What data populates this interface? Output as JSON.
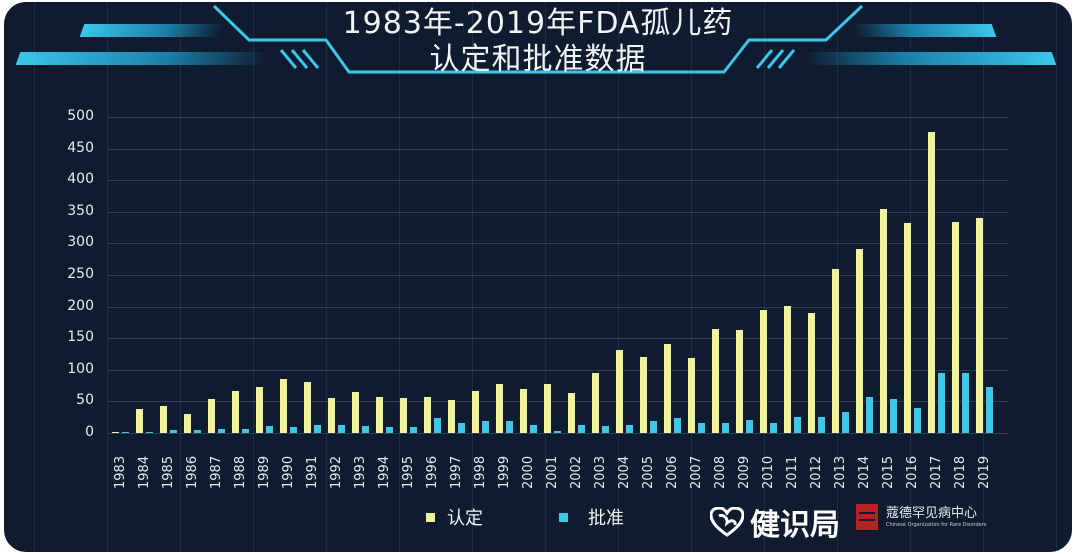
{
  "title": {
    "line1": "1983年-2019年FDA孤儿药",
    "line2": "认定和批准数据"
  },
  "colors": {
    "background": "#0f1b2e",
    "designation": "#f0f29a",
    "approval": "#3dc8e6",
    "accent": "#3cc6ea"
  },
  "legend": {
    "designation": "认定",
    "approval": "批准"
  },
  "logos": {
    "brand1": "健识局",
    "brand2": "蔻德罕见病中心",
    "brand2_sub": "Chinese Organization for Rare Disorders"
  },
  "chart_data": {
    "type": "bar",
    "title": "1983年-2019年FDA孤儿药认定和批准数据",
    "xlabel": "",
    "ylabel": "",
    "ylim": [
      0,
      500
    ],
    "yticks": [
      0,
      50,
      100,
      150,
      200,
      250,
      300,
      350,
      400,
      450,
      500
    ],
    "grid": true,
    "legend_position": "bottom",
    "categories": [
      "1983",
      "1984",
      "1985",
      "1986",
      "1987",
      "1988",
      "1989",
      "1990",
      "1991",
      "1992",
      "1993",
      "1994",
      "1995",
      "1996",
      "1997",
      "1998",
      "1999",
      "2000",
      "2001",
      "2002",
      "2003",
      "2004",
      "2005",
      "2006",
      "2007",
      "2008",
      "2009",
      "2010",
      "2011",
      "2012",
      "2013",
      "2014",
      "2015",
      "2016",
      "2017",
      "2018",
      "2019"
    ],
    "series": [
      {
        "name": "认定",
        "color": "#f0f29a",
        "values": [
          2,
          38,
          43,
          30,
          54,
          66,
          73,
          85,
          81,
          55,
          65,
          57,
          56,
          57,
          52,
          66,
          78,
          69,
          77,
          64,
          95,
          131,
          121,
          141,
          118,
          165,
          163,
          195,
          201,
          190,
          260,
          291,
          354,
          332,
          476,
          334,
          340
        ]
      },
      {
        "name": "批准",
        "color": "#3dc8e6",
        "values": [
          2,
          2,
          4,
          4,
          6,
          7,
          11,
          9,
          12,
          12,
          11,
          9,
          9,
          24,
          16,
          19,
          19,
          13,
          3,
          13,
          11,
          13,
          19,
          23,
          16,
          16,
          20,
          16,
          25,
          25,
          33,
          57,
          54,
          40,
          95,
          95,
          73
        ]
      }
    ]
  }
}
